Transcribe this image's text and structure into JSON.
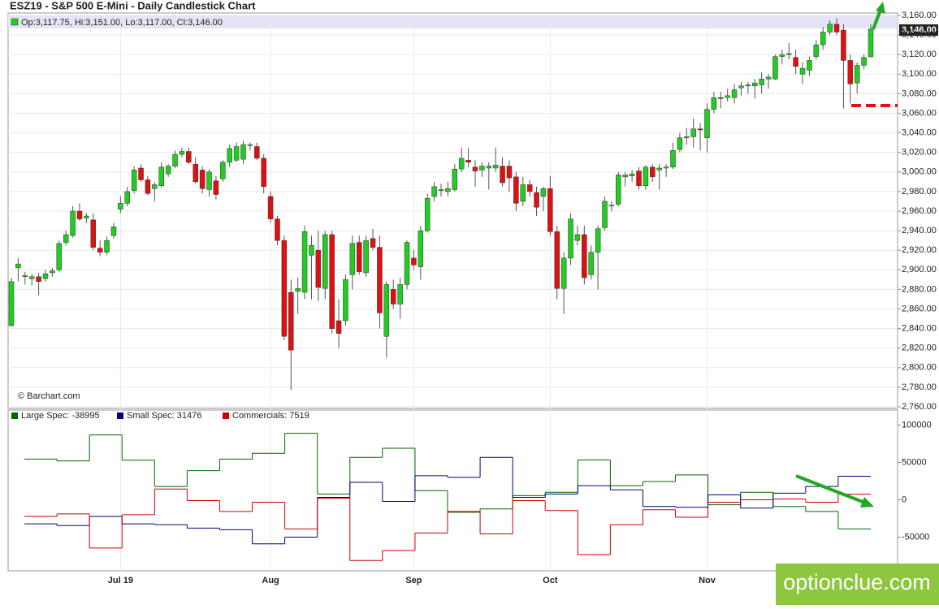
{
  "chart_data": [
    {
      "type": "candlestick",
      "title": "ESZ19 - S&P 500 E-Mini - Daily Candlestick Chart",
      "ohlc_label": "Op:3,117.75, Hi:3,151.00, Lo:3,117.00, Cl:3,146.00",
      "last_label": "3,146.00",
      "source": "© Barchart.com",
      "up_color": "#22cc22",
      "down_color": "#dd1111",
      "categories": [
        null,
        null,
        null,
        null,
        null,
        null,
        null,
        null,
        null,
        null,
        null,
        null,
        null,
        null,
        null,
        null,
        "Jul 19",
        null,
        null,
        null,
        null,
        null,
        null,
        null,
        null,
        null,
        null,
        null,
        null,
        null,
        null,
        null,
        null,
        null,
        null,
        null,
        null,
        null,
        "Aug",
        null,
        null,
        null,
        null,
        null,
        null,
        null,
        null,
        null,
        null,
        null,
        null,
        null,
        null,
        null,
        null,
        null,
        null,
        null,
        null,
        "Sep",
        null,
        null,
        null,
        null,
        null,
        null,
        null,
        null,
        null,
        null,
        null,
        null,
        null,
        null,
        null,
        null,
        null,
        null,
        null,
        "Oct",
        null,
        null,
        null,
        null,
        null,
        null,
        null,
        null,
        null,
        null,
        null,
        null,
        null,
        null,
        null,
        null,
        null,
        null,
        null,
        null,
        null,
        null,
        "Nov",
        null,
        null,
        null,
        null,
        null,
        null,
        null,
        null,
        null,
        null,
        null,
        null,
        null,
        null,
        null,
        null,
        null,
        null,
        null,
        null,
        null,
        null,
        null,
        null
      ],
      "open": [
        2843,
        2902,
        2893,
        2891,
        2893,
        2891,
        2897,
        2900,
        2928,
        2935,
        2960,
        2953,
        2951,
        2922,
        2918,
        2935,
        2962,
        2968,
        2981,
        3004,
        2992,
        2983,
        2986,
        2998,
        3006,
        3018,
        3021,
        3008,
        3002,
        2982,
        2991,
        2993,
        3010,
        3012,
        3013,
        3027,
        3026,
        3014,
        2975,
        2952,
        2930,
        2877,
        2878,
        2877,
        2915,
        2920,
        2881,
        2936,
        2848,
        2848,
        2895,
        2928,
        2897,
        2932,
        2923,
        2832,
        2880,
        2865,
        2885,
        2912,
        2903,
        2940,
        2975,
        2981,
        2980,
        2982,
        3003,
        3012,
        3005,
        3002,
        3004,
        3004,
        3006,
        3006,
        2995,
        2970,
        2987,
        2979,
        2975,
        2983,
        2939,
        2881,
        2912,
        2930,
        2936,
        2895,
        2918,
        2943,
        2966,
        2967,
        2995,
        2996,
        3001,
        2986,
        3005,
        3002,
        3004,
        3005,
        3023,
        3035,
        3036,
        3044,
        3035,
        3064,
        3076,
        3076,
        3076,
        3086,
        3088,
        3088,
        3089,
        3095,
        3095,
        3118,
        3120,
        3117,
        3100,
        3104,
        3118,
        3130,
        3143,
        3151,
        3145,
        3114,
        3091,
        3109,
        3117.75
      ],
      "high": [
        2892,
        2912,
        2898,
        2896,
        2897,
        2900,
        2902,
        2930,
        2940,
        2965,
        2968,
        2958,
        2958,
        2930,
        2934,
        2948,
        2975,
        2985,
        3006,
        3008,
        2996,
        2990,
        3010,
        3008,
        3022,
        3025,
        3025,
        3015,
        3006,
        3003,
        2996,
        3012,
        3028,
        3030,
        3032,
        3030,
        3030,
        3018,
        2980,
        2955,
        2935,
        2890,
        2892,
        2945,
        2935,
        2940,
        2940,
        2940,
        2870,
        2895,
        2935,
        2935,
        2935,
        2942,
        2935,
        2888,
        2890,
        2892,
        2930,
        2920,
        2945,
        2978,
        2990,
        2988,
        2990,
        3008,
        3025,
        3025,
        3012,
        3010,
        3010,
        3025,
        3015,
        3012,
        3000,
        2995,
        2992,
        2985,
        2985,
        2996,
        2945,
        2918,
        2958,
        2945,
        2945,
        2925,
        2945,
        2975,
        2970,
        3000,
        3000,
        3002,
        3005,
        3007,
        3008,
        3008,
        3008,
        3030,
        3040,
        3045,
        3055,
        3050,
        3070,
        3082,
        3082,
        3085,
        3090,
        3092,
        3092,
        3095,
        3102,
        3100,
        3120,
        3125,
        3132,
        3125,
        3112,
        3118,
        3135,
        3148,
        3155,
        3157,
        3151,
        3120,
        3112,
        3120,
        3151
      ],
      "low": [
        2842,
        2888,
        2885,
        2884,
        2874,
        2888,
        2893,
        2898,
        2925,
        2933,
        2950,
        2948,
        2920,
        2914,
        2915,
        2932,
        2958,
        2965,
        2978,
        2990,
        2976,
        2970,
        2984,
        2995,
        3004,
        3015,
        3008,
        2988,
        2978,
        2975,
        2972,
        2990,
        3005,
        3010,
        3008,
        3022,
        3012,
        2978,
        2948,
        2925,
        2828,
        2777,
        2855,
        2870,
        2870,
        2868,
        2870,
        2835,
        2820,
        2843,
        2880,
        2895,
        2893,
        2920,
        2840,
        2810,
        2860,
        2850,
        2880,
        2900,
        2890,
        2938,
        2970,
        2975,
        2975,
        2980,
        3000,
        3005,
        2985,
        2995,
        2982,
        3000,
        2985,
        2980,
        2960,
        2965,
        2975,
        2955,
        2960,
        2935,
        2870,
        2855,
        2905,
        2925,
        2885,
        2890,
        2880,
        2940,
        2960,
        2965,
        2985,
        2990,
        2982,
        2982,
        2990,
        2982,
        2995,
        3003,
        3020,
        3028,
        3025,
        3022,
        3020,
        3060,
        3065,
        3072,
        3070,
        3078,
        3080,
        3075,
        3080,
        3085,
        3094,
        3110,
        3115,
        3100,
        3090,
        3098,
        3115,
        3125,
        3140,
        3140,
        3065,
        3070,
        3080,
        3105,
        3117
      ],
      "close": [
        2888,
        2906,
        2894,
        2893,
        2888,
        2896,
        2899,
        2927,
        2936,
        2960,
        2952,
        2955,
        2923,
        2918,
        2930,
        2944,
        2968,
        2980,
        3002,
        2992,
        2978,
        2987,
        3005,
        3006,
        3018,
        3021,
        3010,
        2990,
        2983,
        3000,
        2977,
        3010,
        3024,
        3026,
        3028,
        3028,
        3014,
        2985,
        2952,
        2930,
        2832,
        2818,
        2881,
        2939,
        2925,
        2882,
        2936,
        2840,
        2835,
        2890,
        2927,
        2898,
        2930,
        2923,
        2856,
        2885,
        2865,
        2885,
        2928,
        2905,
        2940,
        2973,
        2985,
        2982,
        2983,
        3003,
        3014,
        3010,
        3001,
        3006,
        3006,
        3007,
        2989,
        2994,
        2968,
        2987,
        2980,
        2964,
        2983,
        2939,
        2881,
        2912,
        2952,
        2936,
        2892,
        2918,
        2942,
        2970,
        2966,
        2997,
        2997,
        2998,
        2986,
        3005,
        2995,
        3004,
        3005,
        3022,
        3035,
        3036,
        3044,
        3043,
        3064,
        3076,
        3075,
        3078,
        3084,
        3088,
        3089,
        3091,
        3095,
        3097,
        3118,
        3120,
        3121,
        3108,
        3106,
        3114,
        3130,
        3143,
        3151,
        3143,
        3114,
        3090,
        3109,
        3117,
        3146
      ],
      "ylim": [
        2760,
        3160
      ],
      "yticks": [
        {
          "value": 2760,
          "label": "2,760.00"
        },
        {
          "value": 2780,
          "label": "2,780.00"
        },
        {
          "value": 2800,
          "label": "2,800.00"
        },
        {
          "value": 2820,
          "label": "2,820.00"
        },
        {
          "value": 2840,
          "label": "2,840.00"
        },
        {
          "value": 2860,
          "label": "2,860.00"
        },
        {
          "value": 2880,
          "label": "2,880.00"
        },
        {
          "value": 2900,
          "label": "2,900.00"
        },
        {
          "value": 2920,
          "label": "2,920.00"
        },
        {
          "value": 2940,
          "label": "2,940.00"
        },
        {
          "value": 2960,
          "label": "2,960.00"
        },
        {
          "value": 2980,
          "label": "2,980.00"
        },
        {
          "value": 3000,
          "label": "3,000.00"
        },
        {
          "value": 3020,
          "label": "3,020.00"
        },
        {
          "value": 3040,
          "label": "3,040.00"
        },
        {
          "value": 3060,
          "label": "3,060.00"
        },
        {
          "value": 3080,
          "label": "3,080.00"
        },
        {
          "value": 3100,
          "label": "3,100.00"
        },
        {
          "value": 3120,
          "label": "3,120.00"
        },
        {
          "value": 3140,
          "label": "3,140.00"
        },
        {
          "value": 3160,
          "label": "3,160.00"
        }
      ],
      "grid": true
    },
    {
      "type": "step",
      "series": [
        {
          "name": "Large Spec: -38995",
          "color": "#006600",
          "values": [
            54400,
            52000,
            86700,
            53000,
            17800,
            38900,
            54400,
            62200,
            88900,
            7800,
            56700,
            68900,
            12200,
            -16700,
            -12200,
            5600,
            10000,
            53300,
            18900,
            24400,
            33300,
            -6700,
            10000,
            -8900,
            -15600,
            -38995
          ]
        },
        {
          "name": "Small Spec: 31476",
          "color": "#000080",
          "values": [
            -32200,
            -34400,
            -22200,
            -32200,
            -33300,
            -37800,
            -40000,
            -58900,
            -50000,
            3300,
            23300,
            -2200,
            32200,
            30000,
            56700,
            3300,
            7800,
            18900,
            13300,
            -8900,
            -10000,
            6700,
            -11100,
            8900,
            17800,
            31476
          ]
        },
        {
          "name": "Commercials: 7519",
          "color": "#cc0000",
          "values": [
            -22200,
            -18900,
            -64400,
            -20000,
            14400,
            -1100,
            -15600,
            -3300,
            -38900,
            2200,
            -81100,
            -67800,
            -44400,
            -15600,
            -45600,
            -1100,
            -14400,
            -73300,
            -33300,
            -13300,
            -23300,
            -3300,
            0,
            1100,
            -3300,
            7519
          ]
        }
      ],
      "ylim": [
        -95000,
        120000
      ],
      "yticks": [
        -50000,
        0,
        50000,
        100000
      ]
    }
  ],
  "watermark": "optionclue.com"
}
